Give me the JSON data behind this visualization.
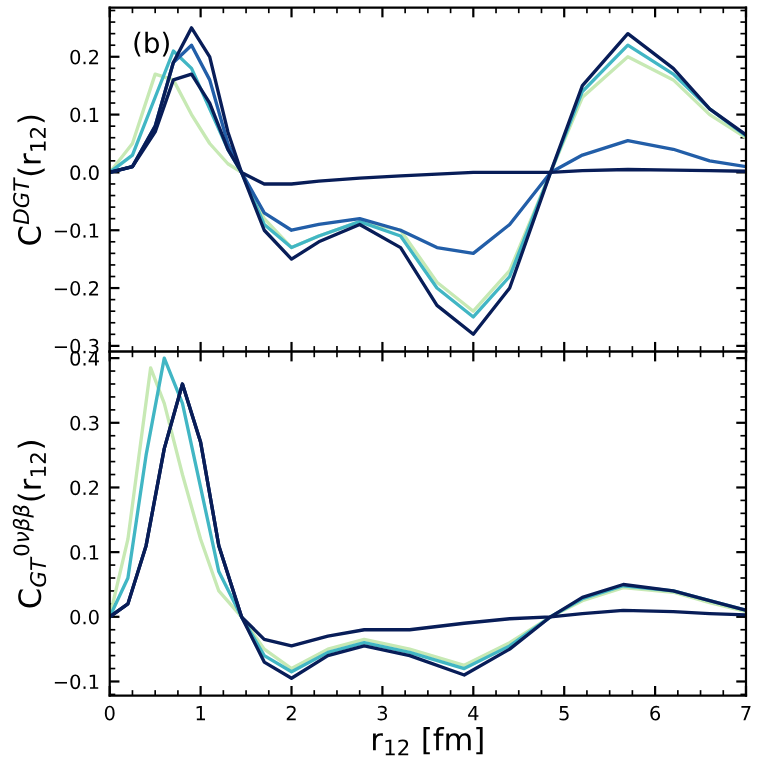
{
  "chart_data": [
    {
      "type": "line",
      "ylabel": "C$^{DGT}$(r$_{12}$)",
      "annotations": [
        "(b)"
      ],
      "xlim": [
        0,
        7
      ],
      "ylim": [
        -0.31,
        0.285
      ],
      "xticks": [
        0,
        1,
        2,
        3,
        4,
        5,
        6,
        7
      ],
      "yticks": [
        -0.3,
        -0.2,
        -0.1,
        {
          "value": 0,
          "label": "0.0"
        },
        0.1,
        0.2
      ],
      "tick_labels": "y",
      "grid": false,
      "series": [
        {
          "color": "#c7e9b4",
          "x": [
            0,
            0.25,
            0.5,
            0.7,
            0.9,
            1.1,
            1.3,
            1.45,
            1.7,
            2.0,
            2.3,
            2.75,
            3.2,
            3.6,
            4.0,
            4.4,
            4.85,
            5.2,
            5.7,
            6.2,
            6.6,
            7
          ],
          "values": [
            0,
            0.05,
            0.17,
            0.16,
            0.1,
            0.05,
            0.015,
            0,
            -0.08,
            -0.13,
            -0.11,
            -0.085,
            -0.1,
            -0.19,
            -0.24,
            -0.17,
            0,
            0.13,
            0.2,
            0.16,
            0.1,
            0.06
          ]
        },
        {
          "color": "#41b6c4",
          "x": [
            0,
            0.25,
            0.5,
            0.7,
            0.9,
            1.1,
            1.3,
            1.45,
            1.7,
            2.0,
            2.3,
            2.75,
            3.2,
            3.6,
            4.0,
            4.4,
            4.85,
            5.2,
            5.7,
            6.2,
            6.6,
            7
          ],
          "values": [
            0,
            0.03,
            0.13,
            0.21,
            0.18,
            0.11,
            0.04,
            0,
            -0.09,
            -0.13,
            -0.11,
            -0.085,
            -0.11,
            -0.2,
            -0.25,
            -0.18,
            0,
            0.14,
            0.22,
            0.17,
            0.11,
            0.063
          ]
        },
        {
          "color": "#225ea8",
          "x": [
            0,
            0.25,
            0.5,
            0.7,
            0.9,
            1.1,
            1.3,
            1.45,
            1.7,
            2.0,
            2.3,
            2.75,
            3.2,
            3.6,
            4.0,
            4.4,
            4.85,
            5.2,
            5.7,
            6.2,
            6.6,
            7
          ],
          "values": [
            0,
            0.01,
            0.08,
            0.19,
            0.22,
            0.16,
            0.05,
            0,
            -0.07,
            -0.1,
            -0.09,
            -0.08,
            -0.1,
            -0.13,
            -0.14,
            -0.09,
            0,
            0.03,
            0.055,
            0.04,
            0.02,
            0.01
          ]
        },
        {
          "color": "#081d58",
          "x": [
            0,
            0.25,
            0.5,
            0.7,
            0.9,
            1.1,
            1.3,
            1.45,
            1.7,
            2.0,
            2.3,
            2.75,
            3.2,
            3.6,
            4.0,
            4.4,
            4.85,
            5.2,
            5.7,
            6.2,
            6.6,
            7
          ],
          "values": [
            0,
            0.01,
            0.07,
            0.16,
            0.17,
            0.12,
            0.04,
            0,
            -0.02,
            -0.02,
            -0.015,
            -0.01,
            -0.006,
            -0.003,
            0,
            0,
            0,
            0.003,
            0.005,
            0.004,
            0.003,
            0.002
          ]
        },
        {
          "color": "#081d58",
          "x": [
            0,
            0.25,
            0.5,
            0.7,
            0.9,
            1.1,
            1.3,
            1.45,
            1.7,
            2.0,
            2.3,
            2.75,
            3.2,
            3.6,
            4.0,
            4.4,
            4.85,
            5.2,
            5.7,
            6.2,
            6.6,
            7
          ],
          "values": [
            0,
            0.01,
            0.08,
            0.19,
            0.25,
            0.2,
            0.07,
            0,
            -0.1,
            -0.15,
            -0.12,
            -0.09,
            -0.13,
            -0.23,
            -0.28,
            -0.2,
            0,
            0.15,
            0.24,
            0.18,
            0.11,
            0.065
          ]
        }
      ]
    },
    {
      "type": "line",
      "xlabel": "r$_{12}$ [fm]",
      "ylabel": "C$_{GT}$$^{0νββ}$(r$_{12}$)",
      "xlim": [
        0,
        7
      ],
      "ylim": [
        -0.122,
        0.41
      ],
      "xticks": [
        0,
        1,
        2,
        3,
        4,
        5,
        6,
        7
      ],
      "yticks": [
        -0.1,
        {
          "value": 0,
          "label": "0.0"
        },
        0.1,
        0.2,
        0.3,
        0.4
      ],
      "grid": false,
      "series": [
        {
          "color": "#c7e9b4",
          "x": [
            0,
            0.2,
            0.45,
            0.6,
            0.8,
            1.0,
            1.2,
            1.45,
            1.7,
            2.0,
            2.4,
            2.8,
            3.3,
            3.9,
            4.4,
            4.85,
            5.2,
            5.65,
            6.2,
            6.6,
            7
          ],
          "values": [
            0,
            0.12,
            0.385,
            0.33,
            0.22,
            0.12,
            0.04,
            0,
            -0.05,
            -0.08,
            -0.05,
            -0.035,
            -0.05,
            -0.075,
            -0.04,
            0,
            0.025,
            0.045,
            0.038,
            0.022,
            0.008
          ]
        },
        {
          "color": "#41b6c4",
          "x": [
            0,
            0.2,
            0.4,
            0.6,
            0.8,
            1.0,
            1.2,
            1.45,
            1.7,
            2.0,
            2.4,
            2.8,
            3.3,
            3.9,
            4.4,
            4.85,
            5.2,
            5.65,
            6.2,
            6.6,
            7
          ],
          "values": [
            0,
            0.06,
            0.25,
            0.4,
            0.33,
            0.2,
            0.07,
            0,
            -0.06,
            -0.085,
            -0.055,
            -0.04,
            -0.055,
            -0.08,
            -0.045,
            0,
            0.028,
            0.048,
            0.04,
            0.025,
            0.01
          ]
        },
        {
          "color": "#081d58",
          "x": [
            0,
            0.2,
            0.4,
            0.6,
            0.8,
            1.0,
            1.2,
            1.45,
            1.7,
            2.0,
            2.4,
            2.8,
            3.3,
            3.9,
            4.4,
            4.85,
            5.2,
            5.65,
            6.2,
            6.6,
            7
          ],
          "values": [
            0,
            0.02,
            0.11,
            0.26,
            0.36,
            0.27,
            0.11,
            0,
            -0.035,
            -0.045,
            -0.03,
            -0.02,
            -0.02,
            -0.01,
            -0.003,
            0,
            0.005,
            0.01,
            0.008,
            0.005,
            0.003
          ]
        },
        {
          "color": "#081d58",
          "x": [
            0,
            0.2,
            0.4,
            0.6,
            0.8,
            1.0,
            1.2,
            1.45,
            1.7,
            2.0,
            2.4,
            2.8,
            3.3,
            3.9,
            4.4,
            4.85,
            5.2,
            5.65,
            6.2,
            6.6,
            7
          ],
          "values": [
            0,
            0.02,
            0.11,
            0.26,
            0.36,
            0.27,
            0.11,
            0,
            -0.07,
            -0.095,
            -0.06,
            -0.045,
            -0.06,
            -0.09,
            -0.05,
            0,
            0.03,
            0.05,
            0.04,
            0.025,
            0.01
          ]
        }
      ]
    }
  ]
}
